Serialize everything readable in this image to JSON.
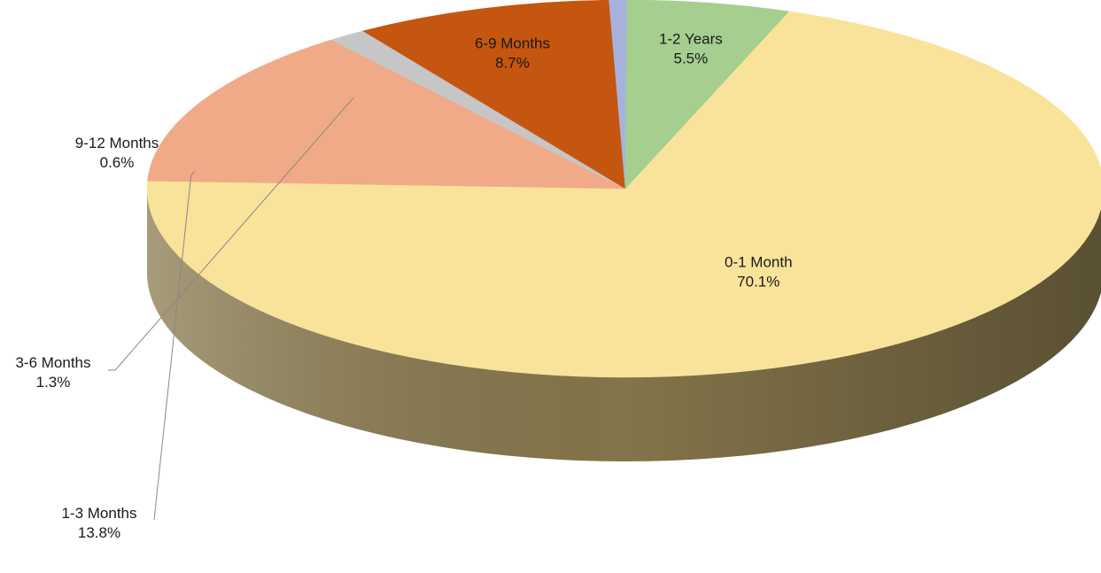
{
  "chart_data": {
    "type": "pie",
    "style": "3d",
    "title": "",
    "slices": [
      {
        "label": "0-1 Month",
        "value": 70.1,
        "display": "70.1%",
        "color": "#F9E29A",
        "side_color": "#8A7A4E"
      },
      {
        "label": "1-3 Months",
        "value": 13.8,
        "display": "13.8%",
        "color": "#F1AA88",
        "side_color": "#B87458"
      },
      {
        "label": "3-6 Months",
        "value": 1.3,
        "display": "1.3%",
        "color": "#C6C6C6",
        "side_color": "#9A9A9A"
      },
      {
        "label": "6-9 Months",
        "value": 8.7,
        "display": "8.7%",
        "color": "#C4560F",
        "side_color": "#8A3A08"
      },
      {
        "label": "9-12 Months",
        "value": 0.6,
        "display": "0.6%",
        "color": "#A7B2DC",
        "side_color": "#7580A8"
      },
      {
        "label": "1-2 Years",
        "value": 5.5,
        "display": "5.5%",
        "color": "#A6CE8F",
        "side_color": "#6E905C"
      }
    ]
  }
}
